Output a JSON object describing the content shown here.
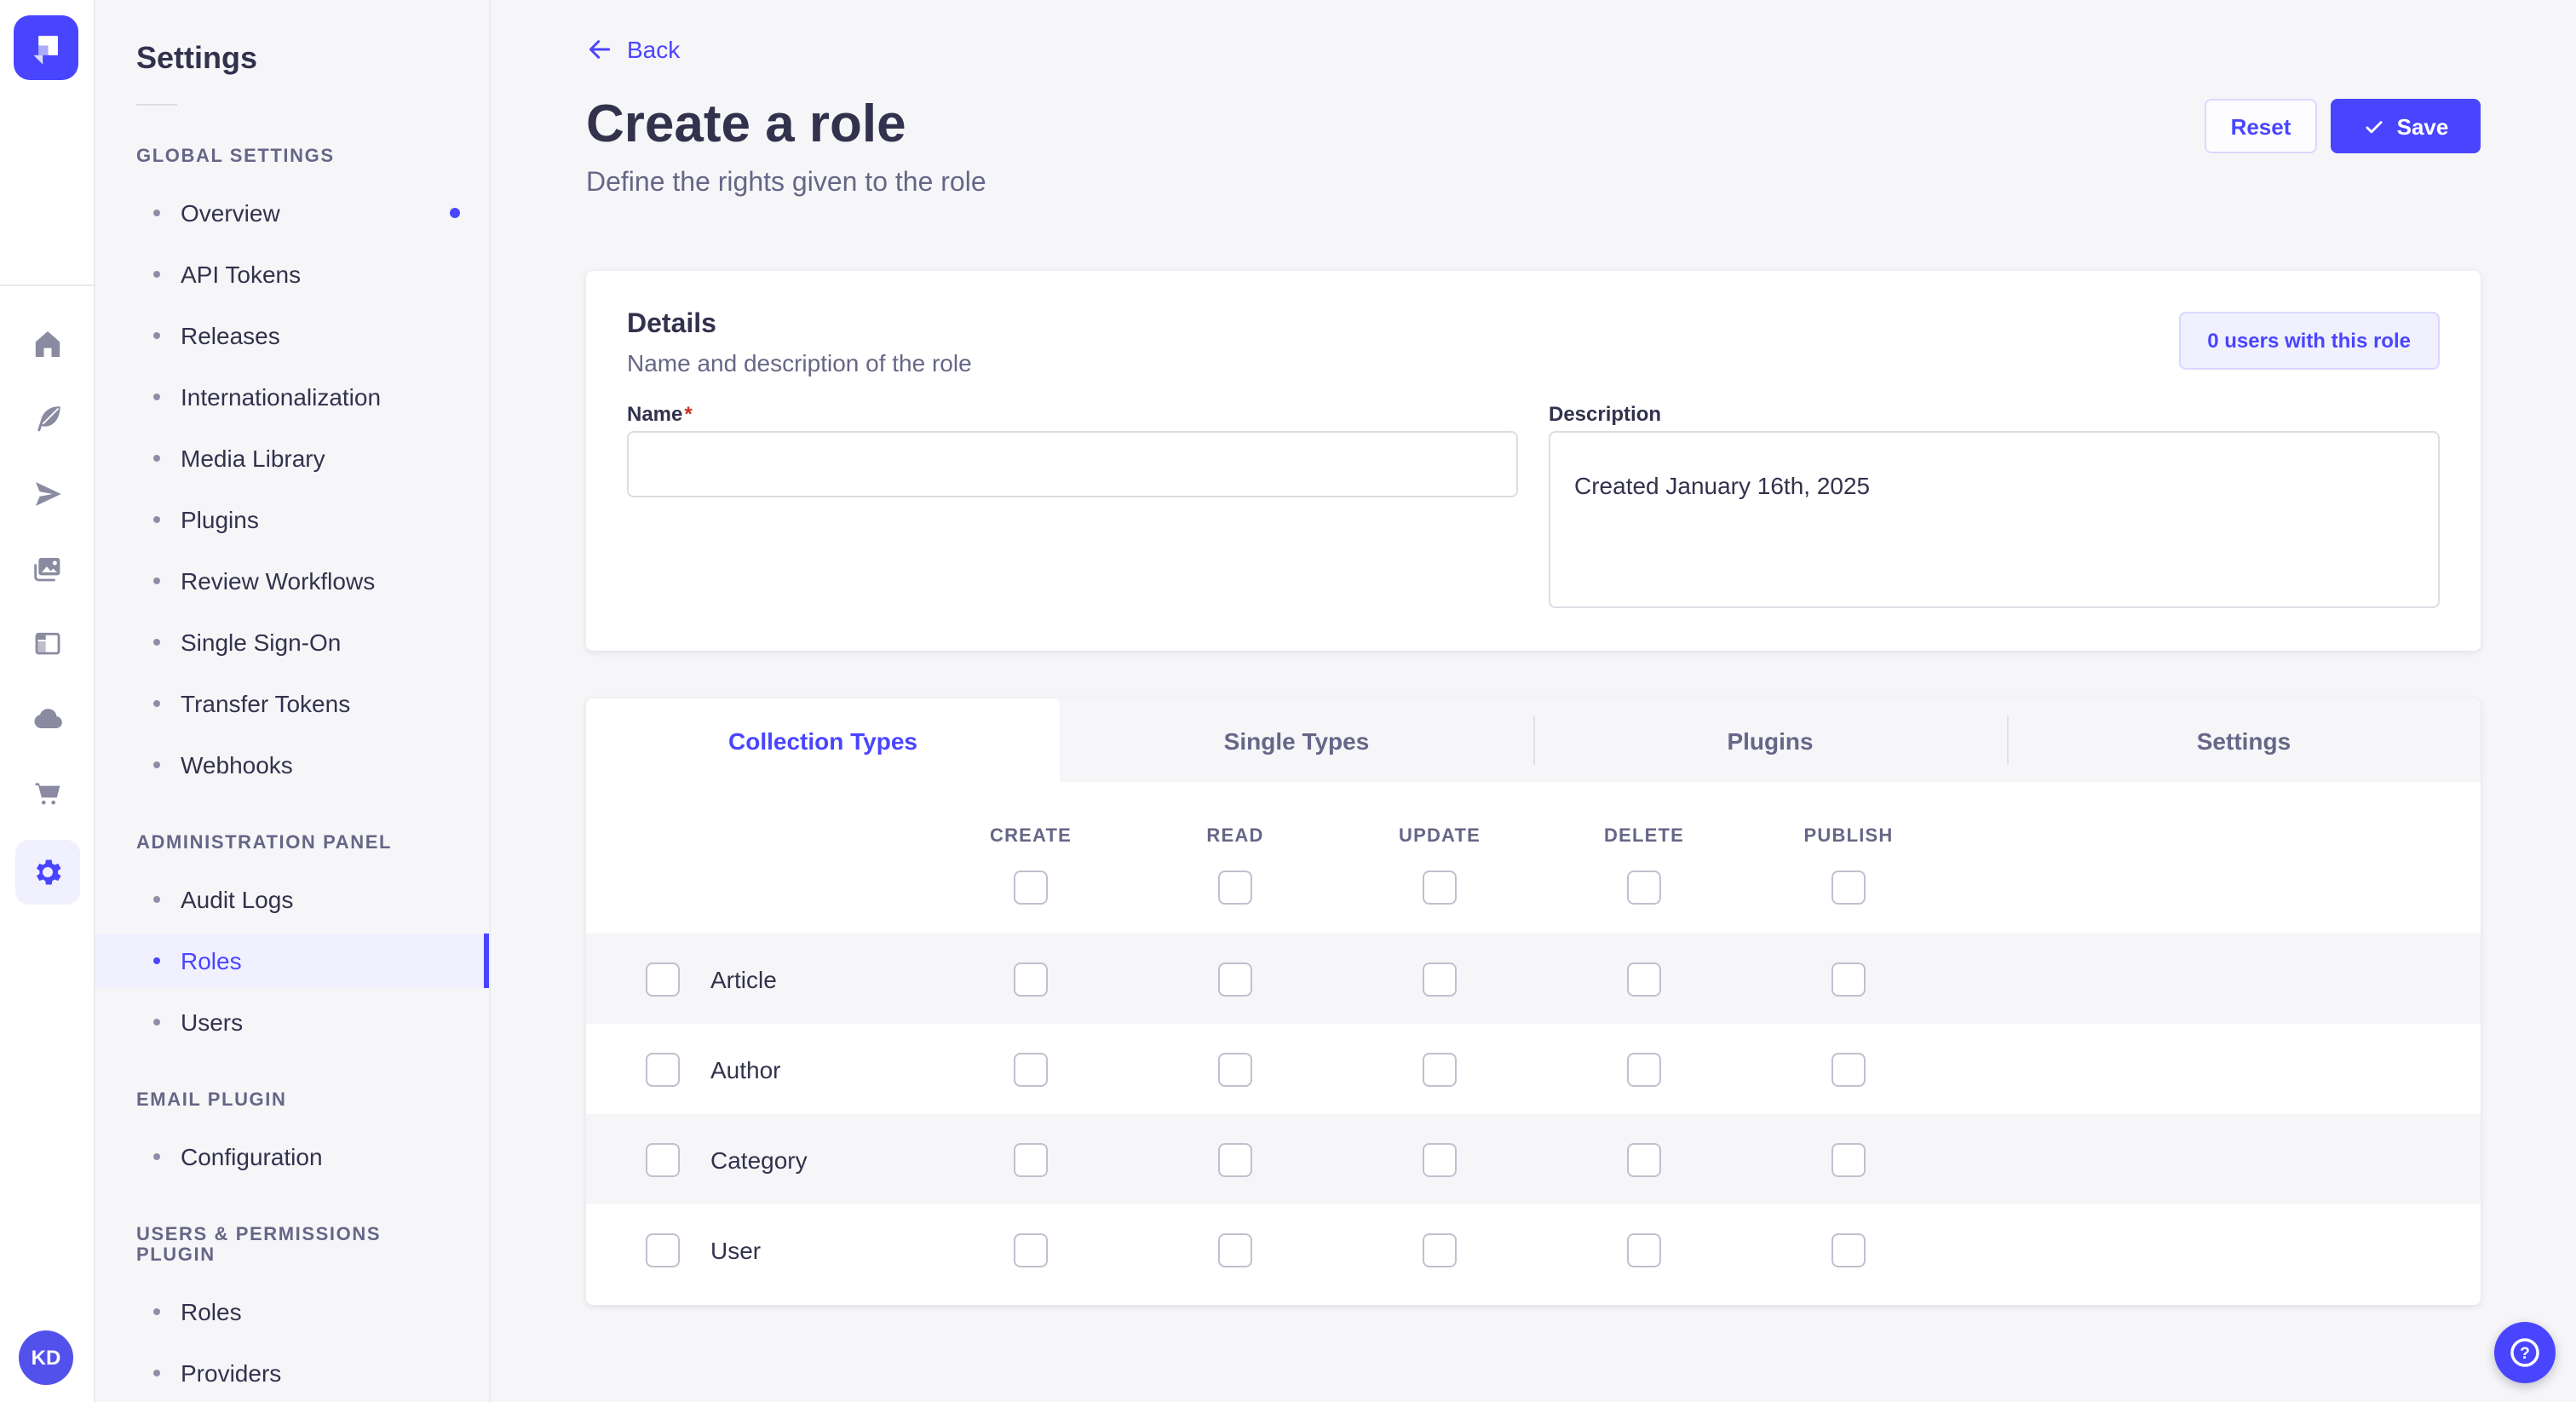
{
  "colors": {
    "primary": "#4945ff",
    "primary_light_bg": "#f0f0ff",
    "primary_border": "#d9d8ff",
    "page_bg": "#f6f6f9",
    "card_bg": "#ffffff",
    "text": "#32324d",
    "text_muted": "#666687",
    "border": "#eaeaef",
    "checkbox_border": "#c0c0cf",
    "avatar_bg": "#5351ec",
    "required_asterisk": "#d02b20"
  },
  "rail": {
    "logo_icon": "strapi-logo-icon",
    "icons": [
      {
        "name": "home-icon",
        "active": false
      },
      {
        "name": "content-manager-icon",
        "active": false
      },
      {
        "name": "release-icon",
        "active": false
      },
      {
        "name": "media-library-icon",
        "active": false
      },
      {
        "name": "content-type-builder-icon",
        "active": false
      },
      {
        "name": "deploy-icon",
        "active": false
      },
      {
        "name": "marketplace-icon",
        "active": false
      },
      {
        "name": "settings-icon",
        "active": true
      }
    ],
    "avatar_initials": "KD"
  },
  "sidebar": {
    "title": "Settings",
    "sections": [
      {
        "label": "GLOBAL SETTINGS",
        "items": [
          {
            "label": "Overview",
            "notification": true
          },
          {
            "label": "API Tokens"
          },
          {
            "label": "Releases"
          },
          {
            "label": "Internationalization"
          },
          {
            "label": "Media Library"
          },
          {
            "label": "Plugins"
          },
          {
            "label": "Review Workflows"
          },
          {
            "label": "Single Sign-On"
          },
          {
            "label": "Transfer Tokens"
          },
          {
            "label": "Webhooks"
          }
        ]
      },
      {
        "label": "ADMINISTRATION PANEL",
        "items": [
          {
            "label": "Audit Logs"
          },
          {
            "label": "Roles",
            "active": true
          },
          {
            "label": "Users"
          }
        ]
      },
      {
        "label": "EMAIL PLUGIN",
        "items": [
          {
            "label": "Configuration"
          }
        ]
      },
      {
        "label": "USERS & PERMISSIONS PLUGIN",
        "items": [
          {
            "label": "Roles"
          },
          {
            "label": "Providers"
          }
        ]
      }
    ]
  },
  "header": {
    "back_label": "Back",
    "title": "Create a role",
    "subtitle": "Define the rights given to the role",
    "reset_label": "Reset",
    "save_label": "Save",
    "save_icon": "check-icon",
    "back_icon": "arrow-left-icon"
  },
  "details_card": {
    "title": "Details",
    "subtitle": "Name and description of the role",
    "users_button_label": "0 users with this role",
    "name_label": "Name",
    "name_required_marker": "*",
    "name_value": "",
    "description_label": "Description",
    "description_value": "Created January 16th, 2025"
  },
  "permissions_card": {
    "tabs": [
      {
        "label": "Collection Types",
        "active": true
      },
      {
        "label": "Single Types",
        "active": false
      },
      {
        "label": "Plugins",
        "active": false
      },
      {
        "label": "Settings",
        "active": false
      }
    ],
    "columns": [
      "CREATE",
      "READ",
      "UPDATE",
      "DELETE",
      "PUBLISH"
    ],
    "rows": [
      {
        "label": "Article"
      },
      {
        "label": "Author"
      },
      {
        "label": "Category"
      },
      {
        "label": "User"
      }
    ],
    "all_checkboxes_state": "unchecked"
  },
  "help": {
    "icon": "help-icon"
  }
}
